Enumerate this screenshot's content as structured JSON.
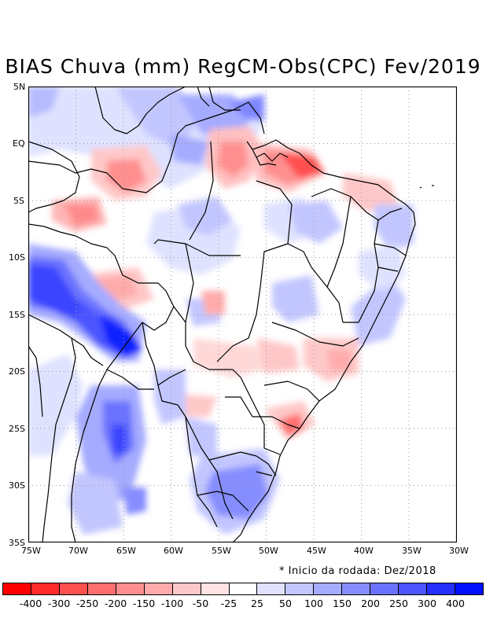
{
  "title": "BIAS Chuva (mm) RegCM-Obs(CPC) Fev/2019",
  "note": "* Inicio da rodada: Dez/2018",
  "lat_labels": [
    "5N",
    "EQ",
    "5S",
    "10S",
    "15S",
    "20S",
    "25S",
    "30S",
    "35S"
  ],
  "lon_labels": [
    "75W",
    "70W",
    "65W",
    "60W",
    "55W",
    "50W",
    "45W",
    "40W",
    "35W",
    "30W"
  ],
  "colorbar": {
    "colors": [
      "#ff0000",
      "#ff2b2b",
      "#ff5050",
      "#ff6e6e",
      "#ff8f8f",
      "#ffabab",
      "#ffc8c8",
      "#ffe3e3",
      "#ffffff",
      "#e0e2ff",
      "#c2c6ff",
      "#a5abff",
      "#868dff",
      "#6a72ff",
      "#4c55ff",
      "#2530ff",
      "#0010ff"
    ],
    "labels": [
      "-400",
      "-300",
      "-250",
      "-200",
      "-150",
      "-100",
      "-50",
      "-25",
      "25",
      "50",
      "100",
      "150",
      "200",
      "250",
      "300",
      "400"
    ]
  }
}
